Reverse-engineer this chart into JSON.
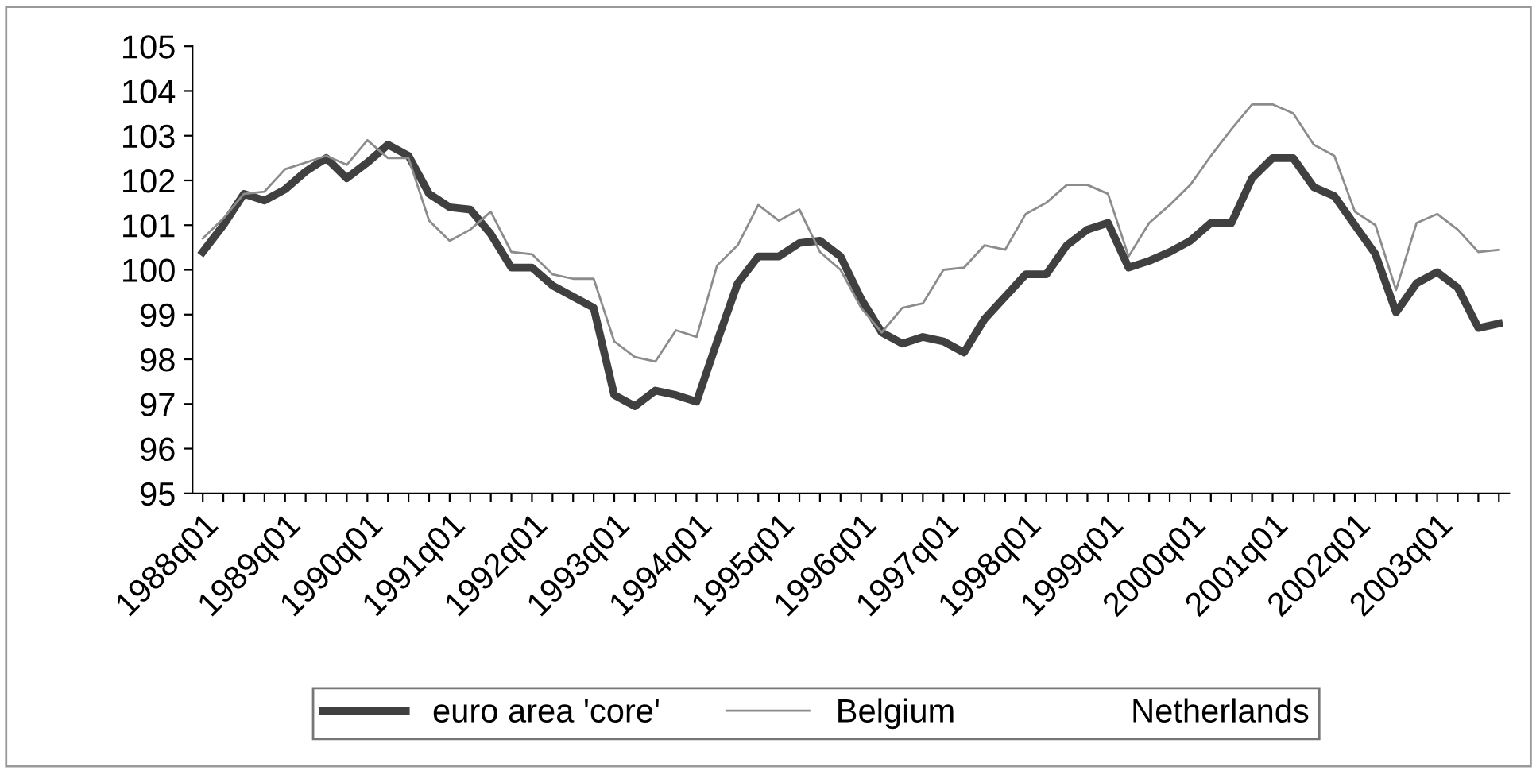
{
  "chart_data": {
    "type": "line",
    "categories": [
      "1988q01",
      null,
      null,
      null,
      "1989q01",
      null,
      null,
      null,
      "1990q01",
      null,
      null,
      null,
      "1991q01",
      null,
      null,
      null,
      "1992q01",
      null,
      null,
      null,
      "1993q01",
      null,
      null,
      null,
      "1994q01",
      null,
      null,
      null,
      "1995q01",
      null,
      null,
      null,
      "1996q01",
      null,
      null,
      null,
      "1997q01",
      null,
      null,
      null,
      "1998q01",
      null,
      null,
      null,
      "1999q01",
      null,
      null,
      null,
      "2000q01",
      null,
      null,
      null,
      "2001q01",
      null,
      null,
      null,
      "2002q01",
      null,
      null,
      null,
      "2003q01",
      null,
      null,
      null
    ],
    "series": [
      {
        "name": "euro area 'core'",
        "color": "#404040",
        "values": [
          100.4,
          101.0,
          101.7,
          101.55,
          101.8,
          102.2,
          102.5,
          102.05,
          102.4,
          102.8,
          102.55,
          101.7,
          101.4,
          101.35,
          100.8,
          100.05,
          100.05,
          99.65,
          99.4,
          99.15,
          97.2,
          96.95,
          97.3,
          97.2,
          97.05,
          98.4,
          99.7,
          100.3,
          100.3,
          100.6,
          100.65,
          100.3,
          99.35,
          98.6,
          98.35,
          98.5,
          98.4,
          98.15,
          98.9,
          99.4,
          99.9,
          99.9,
          100.55,
          100.9,
          101.05,
          100.05,
          100.2,
          100.4,
          100.65,
          101.05,
          101.05,
          102.05,
          102.5,
          102.5,
          101.85,
          101.65,
          101.0,
          100.35,
          99.05,
          99.7,
          99.95,
          99.6,
          98.7,
          98.8
        ]
      },
      {
        "name": "Belgium",
        "color": "#8c8c8c",
        "values": [
          100.7,
          101.15,
          101.7,
          101.75,
          102.25,
          102.4,
          102.55,
          102.35,
          102.9,
          102.5,
          102.5,
          101.1,
          100.65,
          100.9,
          101.3,
          100.4,
          100.35,
          99.9,
          99.8,
          99.8,
          98.4,
          98.05,
          97.95,
          98.65,
          98.5,
          100.1,
          100.55,
          101.45,
          101.1,
          101.35,
          100.4,
          100.0,
          99.15,
          98.6,
          99.15,
          99.25,
          100.0,
          100.05,
          100.55,
          100.45,
          101.25,
          101.5,
          101.9,
          101.9,
          101.7,
          100.3,
          101.05,
          101.45,
          101.9,
          102.55,
          103.15,
          103.7,
          103.7,
          103.5,
          102.8,
          102.55,
          101.3,
          101.0,
          99.55,
          101.05,
          101.25,
          100.9,
          100.4,
          100.45
        ]
      },
      {
        "name": "Netherlands",
        "values": [
          null,
          null,
          null,
          null,
          null,
          null,
          null,
          null,
          null,
          null,
          null,
          null,
          null,
          null,
          null,
          null,
          null,
          null,
          null,
          null,
          null,
          null,
          null,
          null,
          null,
          null,
          null,
          null,
          null,
          null,
          null,
          null,
          null,
          null,
          null,
          null,
          null,
          null,
          null,
          null,
          null,
          null,
          null,
          null,
          null,
          null,
          null,
          null,
          null,
          null,
          null,
          null,
          null,
          null,
          null,
          null,
          null,
          null,
          null,
          null,
          null,
          null,
          null,
          null
        ]
      }
    ],
    "ylim": [
      95,
      105
    ],
    "yticks": [
      95,
      96,
      97,
      98,
      99,
      100,
      101,
      102,
      103,
      104,
      105
    ],
    "grid": false,
    "legend": "bottom",
    "marker": "none",
    "line_style": "solid"
  }
}
